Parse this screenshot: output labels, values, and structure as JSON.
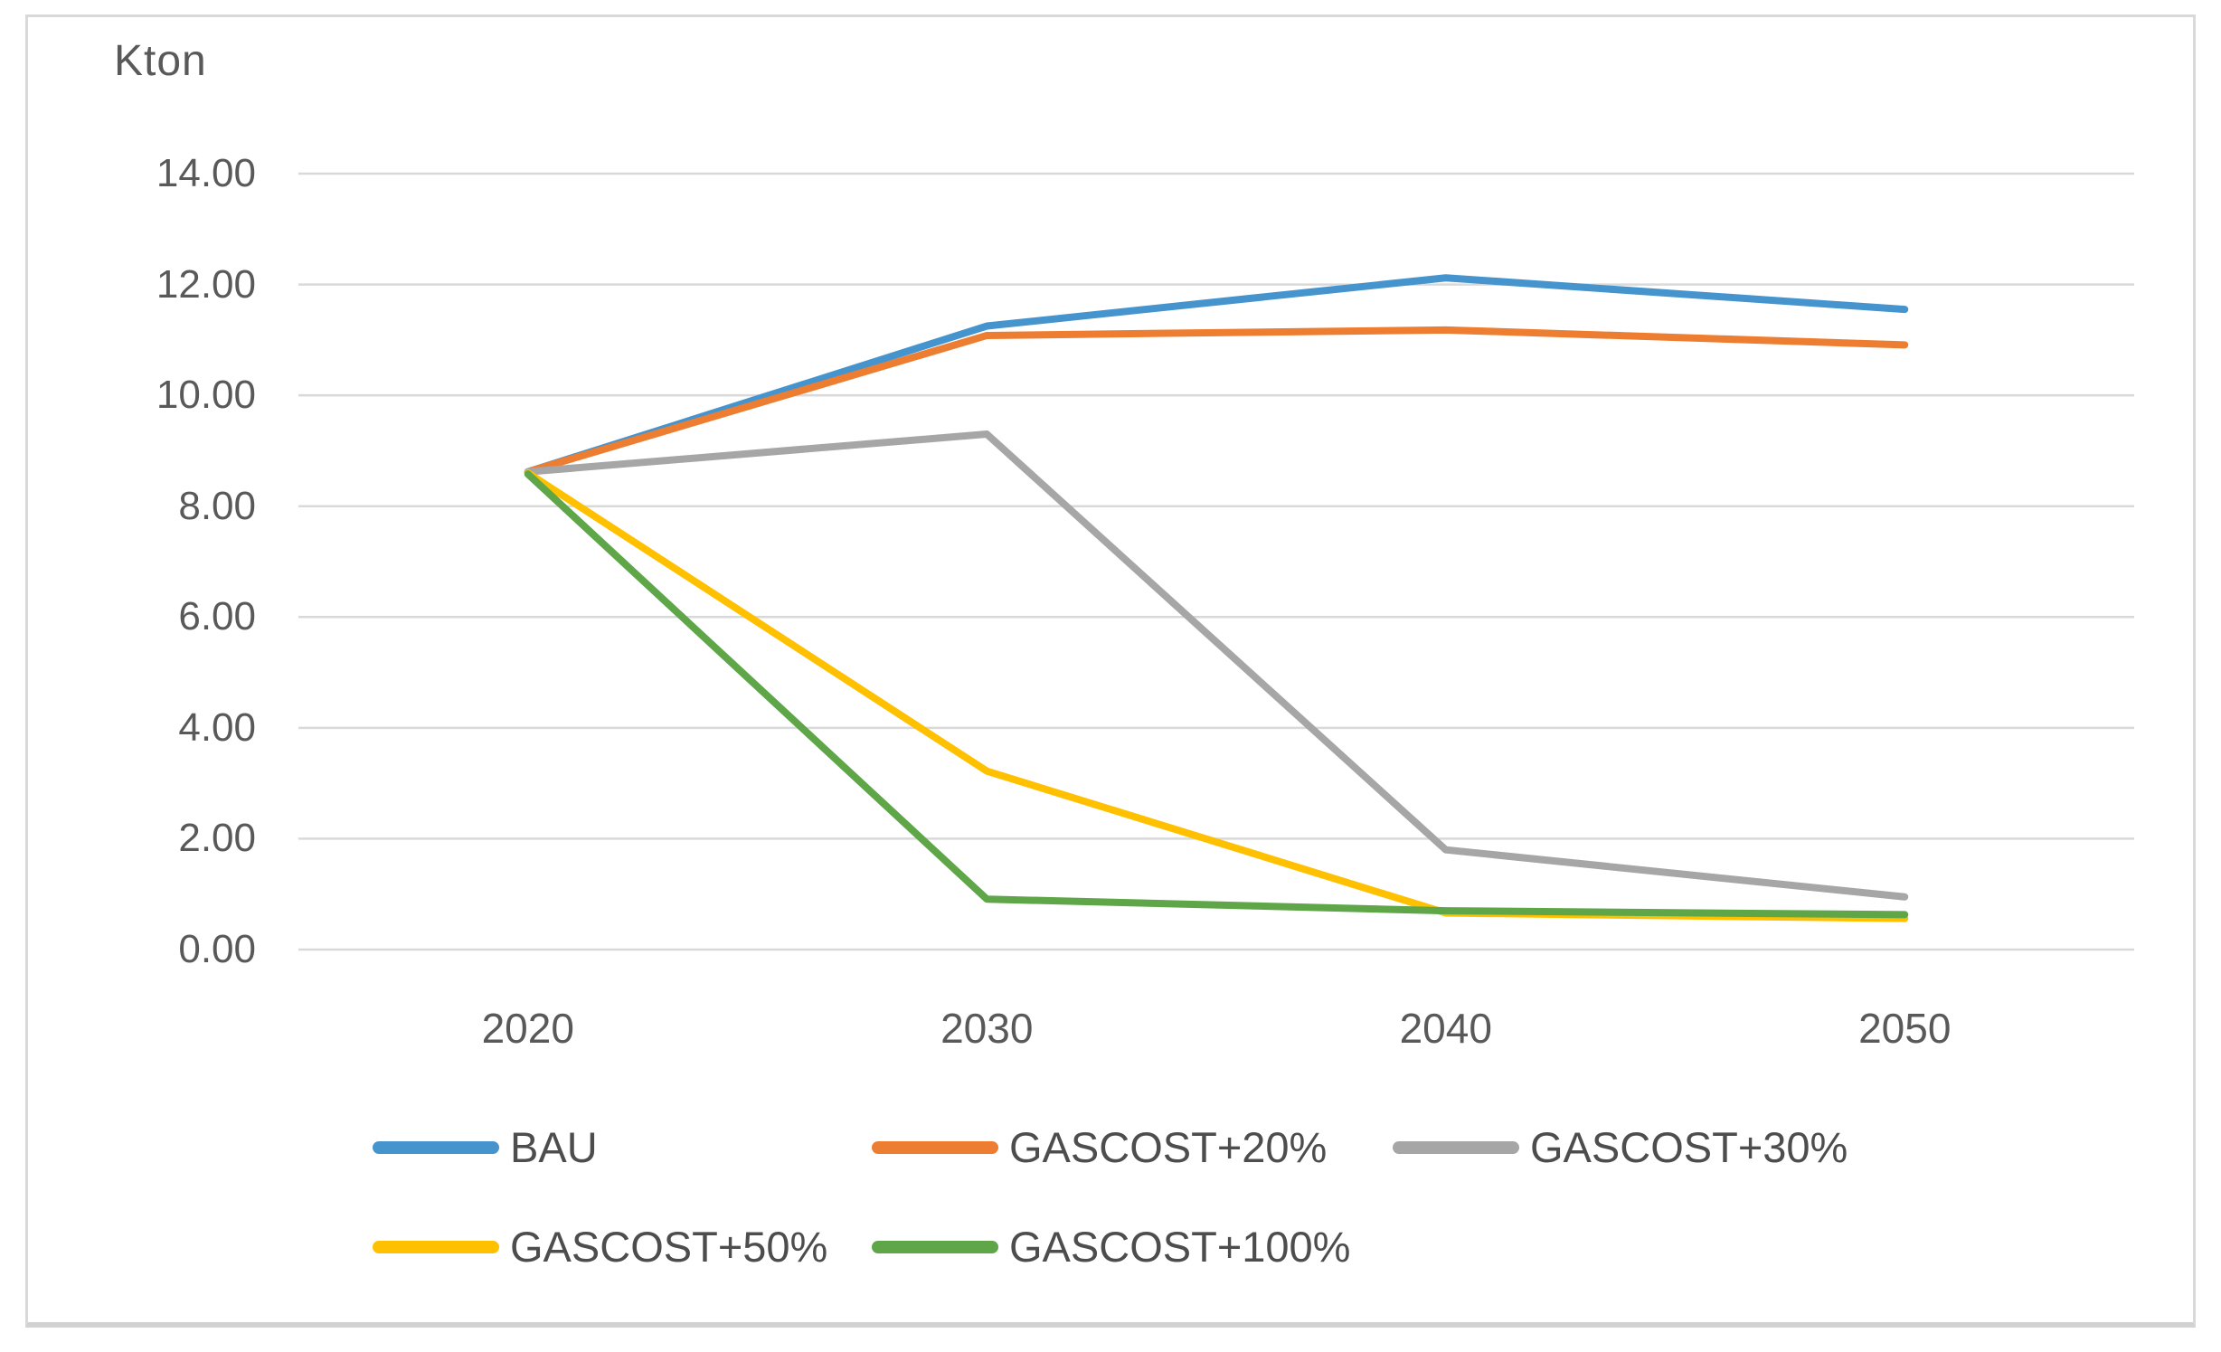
{
  "chart_data": {
    "type": "line",
    "title": "",
    "ylabel": "Kton",
    "xlabel": "",
    "categories": [
      "2020",
      "2030",
      "2040",
      "2050"
    ],
    "y_ticks": [
      "14.00",
      "12.00",
      "10.00",
      "8.00",
      "6.00",
      "4.00",
      "2.00",
      "0.00"
    ],
    "ylim": [
      0,
      14
    ],
    "grid": true,
    "legend_position": "bottom",
    "series": [
      {
        "name": "BAU",
        "color": "#4694CE",
        "values": [
          8.62,
          11.25,
          12.12,
          11.55
        ]
      },
      {
        "name": "GASCOST+20%",
        "color": "#ED7D31",
        "values": [
          8.62,
          11.08,
          11.18,
          10.91
        ]
      },
      {
        "name": "GASCOST+30%",
        "color": "#A6A6A6",
        "values": [
          8.62,
          9.3,
          1.8,
          0.95
        ]
      },
      {
        "name": "GASCOST+50%",
        "color": "#FFC000",
        "values": [
          8.6,
          3.22,
          0.66,
          0.56
        ]
      },
      {
        "name": "GASCOST+100%",
        "color": "#5EA648",
        "values": [
          8.58,
          0.91,
          0.7,
          0.63
        ]
      }
    ],
    "colors": {
      "gridline": "#D9D9D9",
      "axis_text": "#595959",
      "legend_text": "#4d4d4d",
      "frame_border": "#D9D9D9",
      "background": "#ffffff"
    }
  }
}
